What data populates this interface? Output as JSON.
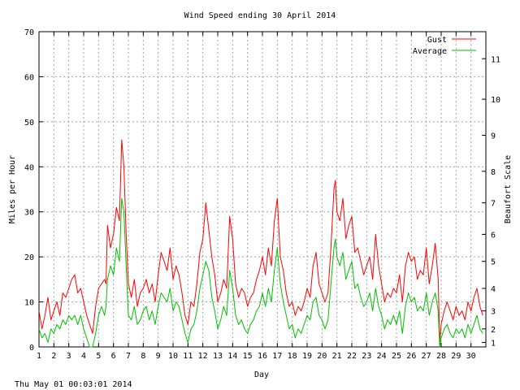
{
  "footer": {
    "timestamp": "Thu May 01 00:03:01 2014"
  },
  "chart_data": {
    "type": "line",
    "title": "Wind Speed ending 30 April 2014",
    "xlabel": "Day",
    "ylabel": "Miles per Hour",
    "y2label": "Beaufort Scale",
    "xlim": [
      1,
      31
    ],
    "ylim": [
      0,
      70
    ],
    "x_ticks": [
      1,
      2,
      3,
      4,
      5,
      6,
      7,
      8,
      9,
      10,
      11,
      12,
      13,
      14,
      15,
      16,
      17,
      18,
      19,
      20,
      21,
      22,
      23,
      24,
      25,
      26,
      27,
      28,
      29,
      30
    ],
    "x_tick_labels": [
      "1",
      "2",
      "3",
      "4",
      "5",
      "6",
      "7",
      "8",
      "9",
      "10",
      "11",
      "12",
      "13",
      "14",
      "15",
      "16",
      "17",
      "18",
      "19",
      "20",
      "21",
      "22",
      "23",
      "24",
      "25",
      "26",
      "27",
      "28",
      "29",
      "30"
    ],
    "y_ticks": [
      0,
      10,
      20,
      30,
      40,
      50,
      60,
      70
    ],
    "y_tick_labels": [
      "0",
      "10",
      "20",
      "30",
      "40",
      "50",
      "60",
      "70"
    ],
    "beaufort_ticks": [
      {
        "label": "1",
        "mph": 1
      },
      {
        "label": "2",
        "mph": 4
      },
      {
        "label": "3",
        "mph": 8
      },
      {
        "label": "4",
        "mph": 13
      },
      {
        "label": "5",
        "mph": 19
      },
      {
        "label": "6",
        "mph": 25
      },
      {
        "label": "7",
        "mph": 32
      },
      {
        "label": "8",
        "mph": 39
      },
      {
        "label": "9",
        "mph": 47
      },
      {
        "label": "10",
        "mph": 55
      },
      {
        "label": "11",
        "mph": 64
      }
    ],
    "grid": true,
    "legend_position": "top-right",
    "series": [
      {
        "name": "Gust",
        "color": "#ff0000",
        "points": [
          [
            1.0,
            8
          ],
          [
            1.2,
            4
          ],
          [
            1.4,
            7
          ],
          [
            1.6,
            11
          ],
          [
            1.8,
            6
          ],
          [
            2.0,
            8
          ],
          [
            2.2,
            10
          ],
          [
            2.4,
            7
          ],
          [
            2.6,
            12
          ],
          [
            2.8,
            11
          ],
          [
            3.0,
            13
          ],
          [
            3.2,
            15
          ],
          [
            3.4,
            16
          ],
          [
            3.6,
            12
          ],
          [
            3.8,
            13
          ],
          [
            4.0,
            10
          ],
          [
            4.2,
            7
          ],
          [
            4.4,
            5
          ],
          [
            4.6,
            3
          ],
          [
            4.8,
            9
          ],
          [
            5.0,
            13
          ],
          [
            5.2,
            14
          ],
          [
            5.4,
            15
          ],
          [
            5.5,
            14
          ],
          [
            5.6,
            27
          ],
          [
            5.8,
            22
          ],
          [
            6.0,
            25
          ],
          [
            6.2,
            31
          ],
          [
            6.4,
            28
          ],
          [
            6.55,
            46
          ],
          [
            6.7,
            40
          ],
          [
            6.85,
            25
          ],
          [
            7.0,
            14
          ],
          [
            7.2,
            11
          ],
          [
            7.4,
            15
          ],
          [
            7.6,
            9
          ],
          [
            7.8,
            12
          ],
          [
            8.0,
            13
          ],
          [
            8.2,
            15
          ],
          [
            8.4,
            12
          ],
          [
            8.6,
            14
          ],
          [
            8.8,
            10
          ],
          [
            9.0,
            16
          ],
          [
            9.2,
            21
          ],
          [
            9.4,
            19
          ],
          [
            9.6,
            17
          ],
          [
            9.8,
            22
          ],
          [
            10.0,
            15
          ],
          [
            10.2,
            18
          ],
          [
            10.4,
            16
          ],
          [
            10.6,
            12
          ],
          [
            10.8,
            7
          ],
          [
            11.0,
            5
          ],
          [
            11.2,
            10
          ],
          [
            11.4,
            9
          ],
          [
            11.6,
            14
          ],
          [
            11.8,
            21
          ],
          [
            12.0,
            24
          ],
          [
            12.2,
            32
          ],
          [
            12.4,
            26
          ],
          [
            12.6,
            20
          ],
          [
            12.8,
            16
          ],
          [
            13.0,
            10
          ],
          [
            13.2,
            12
          ],
          [
            13.4,
            15
          ],
          [
            13.6,
            13
          ],
          [
            13.8,
            29
          ],
          [
            14.0,
            24
          ],
          [
            14.2,
            14
          ],
          [
            14.4,
            11
          ],
          [
            14.6,
            13
          ],
          [
            14.8,
            12
          ],
          [
            15.0,
            9
          ],
          [
            15.2,
            11
          ],
          [
            15.4,
            12
          ],
          [
            15.6,
            15
          ],
          [
            15.8,
            17
          ],
          [
            16.0,
            20
          ],
          [
            16.2,
            16
          ],
          [
            16.4,
            22
          ],
          [
            16.6,
            18
          ],
          [
            16.8,
            28
          ],
          [
            17.0,
            33
          ],
          [
            17.2,
            20
          ],
          [
            17.4,
            17
          ],
          [
            17.6,
            12
          ],
          [
            17.8,
            9
          ],
          [
            18.0,
            10
          ],
          [
            18.2,
            7
          ],
          [
            18.4,
            9
          ],
          [
            18.6,
            8
          ],
          [
            18.8,
            10
          ],
          [
            19.0,
            13
          ],
          [
            19.2,
            11
          ],
          [
            19.4,
            18
          ],
          [
            19.6,
            21
          ],
          [
            19.8,
            14
          ],
          [
            20.0,
            12
          ],
          [
            20.2,
            10
          ],
          [
            20.4,
            12
          ],
          [
            20.6,
            22
          ],
          [
            20.8,
            35
          ],
          [
            20.9,
            37
          ],
          [
            21.0,
            30
          ],
          [
            21.2,
            28
          ],
          [
            21.4,
            33
          ],
          [
            21.6,
            24
          ],
          [
            21.8,
            27
          ],
          [
            22.0,
            29
          ],
          [
            22.2,
            21
          ],
          [
            22.4,
            22
          ],
          [
            22.6,
            19
          ],
          [
            22.8,
            16
          ],
          [
            23.0,
            18
          ],
          [
            23.2,
            20
          ],
          [
            23.4,
            15
          ],
          [
            23.6,
            25
          ],
          [
            23.8,
            18
          ],
          [
            24.0,
            14
          ],
          [
            24.2,
            10
          ],
          [
            24.4,
            12
          ],
          [
            24.6,
            11
          ],
          [
            24.8,
            13
          ],
          [
            25.0,
            12
          ],
          [
            25.2,
            16
          ],
          [
            25.4,
            10
          ],
          [
            25.6,
            18
          ],
          [
            25.8,
            21
          ],
          [
            26.0,
            19
          ],
          [
            26.2,
            20
          ],
          [
            26.4,
            15
          ],
          [
            26.6,
            17
          ],
          [
            26.8,
            16
          ],
          [
            27.0,
            22
          ],
          [
            27.2,
            14
          ],
          [
            27.4,
            18
          ],
          [
            27.6,
            23
          ],
          [
            27.8,
            15
          ],
          [
            27.9,
            1
          ],
          [
            28.0,
            5
          ],
          [
            28.2,
            8
          ],
          [
            28.4,
            10
          ],
          [
            28.6,
            8
          ],
          [
            28.8,
            6
          ],
          [
            29.0,
            9
          ],
          [
            29.2,
            7
          ],
          [
            29.4,
            8
          ],
          [
            29.6,
            6
          ],
          [
            29.8,
            10
          ],
          [
            30.0,
            8
          ],
          [
            30.2,
            11
          ],
          [
            30.4,
            13
          ],
          [
            30.6,
            9
          ],
          [
            30.8,
            7
          ]
        ]
      },
      {
        "name": "Average",
        "color": "#00c000",
        "points": [
          [
            1.0,
            4
          ],
          [
            1.2,
            2
          ],
          [
            1.4,
            3
          ],
          [
            1.6,
            1
          ],
          [
            1.8,
            4
          ],
          [
            2.0,
            3
          ],
          [
            2.2,
            5
          ],
          [
            2.4,
            4
          ],
          [
            2.6,
            6
          ],
          [
            2.8,
            5
          ],
          [
            3.0,
            7
          ],
          [
            3.2,
            6
          ],
          [
            3.4,
            7
          ],
          [
            3.6,
            5
          ],
          [
            3.8,
            7
          ],
          [
            4.0,
            4
          ],
          [
            4.2,
            2
          ],
          [
            4.4,
            0
          ],
          [
            4.6,
            0
          ],
          [
            4.8,
            3
          ],
          [
            5.0,
            7
          ],
          [
            5.2,
            9
          ],
          [
            5.4,
            7
          ],
          [
            5.5,
            9
          ],
          [
            5.6,
            15
          ],
          [
            5.8,
            18
          ],
          [
            6.0,
            16
          ],
          [
            6.2,
            22
          ],
          [
            6.4,
            19
          ],
          [
            6.55,
            33
          ],
          [
            6.7,
            30
          ],
          [
            6.85,
            18
          ],
          [
            7.0,
            7
          ],
          [
            7.2,
            6
          ],
          [
            7.4,
            9
          ],
          [
            7.6,
            5
          ],
          [
            7.8,
            6
          ],
          [
            8.0,
            8
          ],
          [
            8.2,
            9
          ],
          [
            8.4,
            6
          ],
          [
            8.6,
            8
          ],
          [
            8.8,
            5
          ],
          [
            9.0,
            9
          ],
          [
            9.2,
            12
          ],
          [
            9.4,
            11
          ],
          [
            9.6,
            10
          ],
          [
            9.8,
            13
          ],
          [
            10.0,
            8
          ],
          [
            10.2,
            10
          ],
          [
            10.4,
            9
          ],
          [
            10.6,
            6
          ],
          [
            10.8,
            3
          ],
          [
            11.0,
            1
          ],
          [
            11.2,
            4
          ],
          [
            11.4,
            5
          ],
          [
            11.6,
            8
          ],
          [
            11.8,
            13
          ],
          [
            12.0,
            16
          ],
          [
            12.2,
            19
          ],
          [
            12.4,
            17
          ],
          [
            12.6,
            11
          ],
          [
            12.8,
            8
          ],
          [
            13.0,
            4
          ],
          [
            13.2,
            6
          ],
          [
            13.4,
            9
          ],
          [
            13.6,
            7
          ],
          [
            13.8,
            17
          ],
          [
            14.0,
            13
          ],
          [
            14.2,
            7
          ],
          [
            14.4,
            5
          ],
          [
            14.6,
            6
          ],
          [
            14.8,
            4
          ],
          [
            15.0,
            3
          ],
          [
            15.2,
            5
          ],
          [
            15.4,
            6
          ],
          [
            15.6,
            8
          ],
          [
            15.8,
            9
          ],
          [
            16.0,
            12
          ],
          [
            16.2,
            9
          ],
          [
            16.4,
            13
          ],
          [
            16.6,
            10
          ],
          [
            16.8,
            17
          ],
          [
            17.0,
            22
          ],
          [
            17.2,
            14
          ],
          [
            17.4,
            10
          ],
          [
            17.6,
            7
          ],
          [
            17.8,
            4
          ],
          [
            18.0,
            5
          ],
          [
            18.2,
            2
          ],
          [
            18.4,
            4
          ],
          [
            18.6,
            3
          ],
          [
            18.8,
            5
          ],
          [
            19.0,
            7
          ],
          [
            19.2,
            6
          ],
          [
            19.4,
            10
          ],
          [
            19.6,
            11
          ],
          [
            19.8,
            7
          ],
          [
            20.0,
            6
          ],
          [
            20.2,
            4
          ],
          [
            20.4,
            6
          ],
          [
            20.6,
            14
          ],
          [
            20.8,
            22
          ],
          [
            20.9,
            24
          ],
          [
            21.0,
            20
          ],
          [
            21.2,
            18
          ],
          [
            21.4,
            21
          ],
          [
            21.6,
            15
          ],
          [
            21.8,
            17
          ],
          [
            22.0,
            19
          ],
          [
            22.2,
            13
          ],
          [
            22.4,
            14
          ],
          [
            22.6,
            11
          ],
          [
            22.8,
            9
          ],
          [
            23.0,
            10
          ],
          [
            23.2,
            12
          ],
          [
            23.4,
            8
          ],
          [
            23.6,
            13
          ],
          [
            23.8,
            9
          ],
          [
            24.0,
            7
          ],
          [
            24.2,
            4
          ],
          [
            24.4,
            6
          ],
          [
            24.6,
            5
          ],
          [
            24.8,
            7
          ],
          [
            25.0,
            5
          ],
          [
            25.2,
            8
          ],
          [
            25.4,
            3
          ],
          [
            25.6,
            9
          ],
          [
            25.8,
            12
          ],
          [
            26.0,
            10
          ],
          [
            26.2,
            11
          ],
          [
            26.4,
            8
          ],
          [
            26.6,
            9
          ],
          [
            26.8,
            8
          ],
          [
            27.0,
            12
          ],
          [
            27.2,
            7
          ],
          [
            27.4,
            10
          ],
          [
            27.6,
            12
          ],
          [
            27.8,
            8
          ],
          [
            27.9,
            0
          ],
          [
            28.0,
            2
          ],
          [
            28.2,
            4
          ],
          [
            28.4,
            5
          ],
          [
            28.6,
            3
          ],
          [
            28.8,
            2
          ],
          [
            29.0,
            4
          ],
          [
            29.2,
            3
          ],
          [
            29.4,
            4
          ],
          [
            29.6,
            2
          ],
          [
            29.8,
            5
          ],
          [
            30.0,
            3
          ],
          [
            30.2,
            5
          ],
          [
            30.4,
            7
          ],
          [
            30.6,
            4
          ],
          [
            30.8,
            3
          ]
        ]
      }
    ]
  }
}
